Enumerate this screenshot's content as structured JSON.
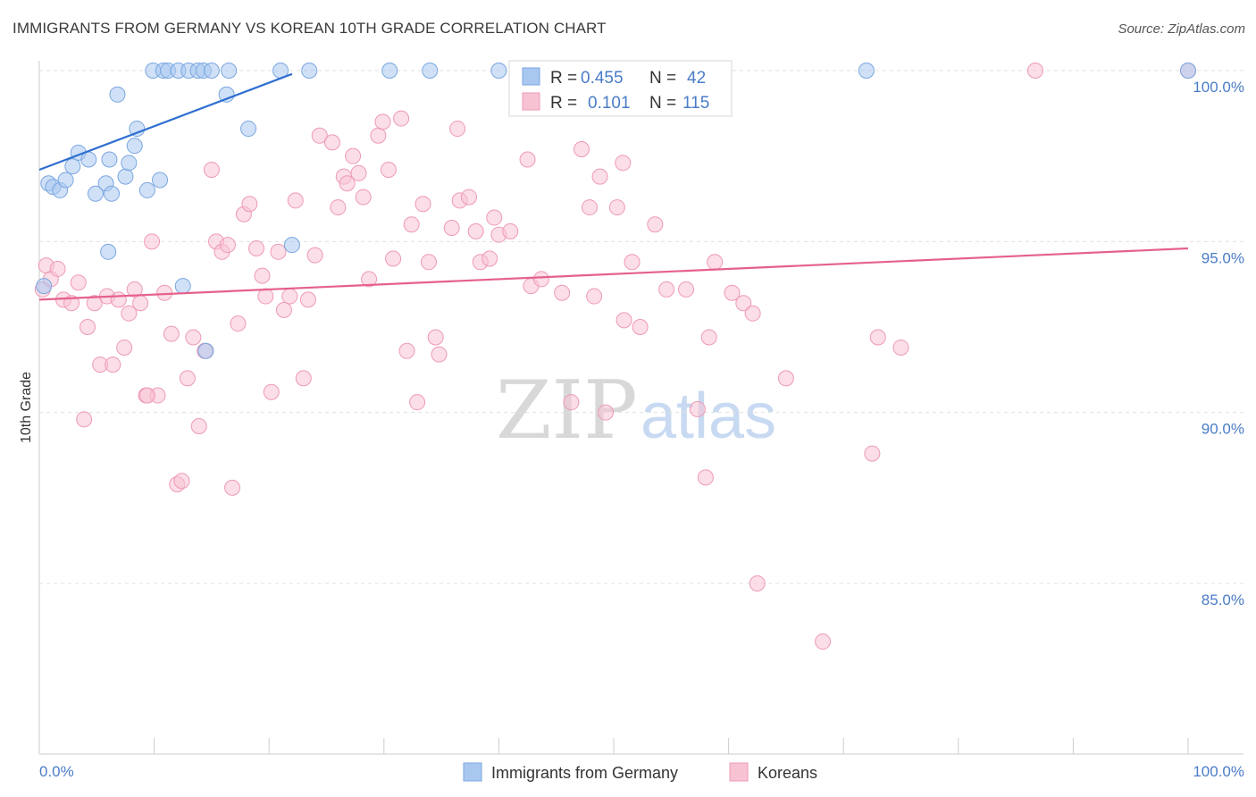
{
  "title": "IMMIGRANTS FROM GERMANY VS KOREAN 10TH GRADE CORRELATION CHART",
  "source": "Source: ZipAtlas.com",
  "watermark": {
    "zip": "ZIP",
    "atlas": "atlas"
  },
  "colors": {
    "blue_fill": "#a9c8f0",
    "blue_stroke": "#7aa6e0",
    "blue_line": "#2f6fd0",
    "pink_fill": "#f7c3d3",
    "pink_stroke": "#ee9ab5",
    "pink_line": "#e5608e",
    "tick_text": "#4a7cc7",
    "grid": "#e0e0e0"
  },
  "legend": {
    "rows": [
      {
        "r_label": "R =",
        "r_value": "0.455",
        "n_label": "N =",
        "n_value": "42"
      },
      {
        "r_label": "R =",
        "r_value": "0.101",
        "n_label": "N =",
        "n_value": "115"
      }
    ]
  },
  "bottom_legend": [
    "Immigrants from Germany",
    "Koreans"
  ],
  "chart_data": {
    "type": "scatter",
    "title": "IMMIGRANTS FROM GERMANY VS KOREAN 10TH GRADE CORRELATION CHART",
    "xlabel": "",
    "ylabel": "10th Grade",
    "xlim": [
      0,
      100
    ],
    "ylim": [
      80.5,
      100.5
    ],
    "x_tick_labels": [
      "0.0%",
      "100.0%"
    ],
    "y_ticks": [
      {
        "value": 100,
        "label": "100.0%"
      },
      {
        "value": 95,
        "label": "95.0%"
      },
      {
        "value": 90,
        "label": "90.0%"
      },
      {
        "value": 85,
        "label": "85.0%"
      }
    ],
    "grid": true,
    "legend_position": "top-center",
    "series": [
      {
        "name": "Immigrants from Germany",
        "r": 0.455,
        "n": 42,
        "trend": {
          "x": [
            0,
            22
          ],
          "y": [
            97.1,
            99.9
          ]
        },
        "points": [
          [
            0.4,
            93.7
          ],
          [
            0.8,
            96.7
          ],
          [
            1.2,
            96.6
          ],
          [
            1.8,
            96.5
          ],
          [
            2.3,
            96.8
          ],
          [
            2.9,
            97.2
          ],
          [
            3.4,
            97.6
          ],
          [
            4.3,
            97.4
          ],
          [
            4.9,
            96.4
          ],
          [
            5.8,
            96.7
          ],
          [
            6.0,
            94.7
          ],
          [
            6.1,
            97.4
          ],
          [
            6.3,
            96.4
          ],
          [
            6.8,
            99.3
          ],
          [
            7.5,
            96.9
          ],
          [
            7.8,
            97.3
          ],
          [
            8.3,
            97.8
          ],
          [
            8.5,
            98.3
          ],
          [
            9.4,
            96.5
          ],
          [
            10.5,
            96.8
          ],
          [
            9.9,
            100.0
          ],
          [
            10.8,
            100.0
          ],
          [
            11.2,
            100.0
          ],
          [
            12.1,
            100.0
          ],
          [
            12.5,
            93.7
          ],
          [
            13.0,
            100.0
          ],
          [
            13.8,
            100.0
          ],
          [
            14.3,
            100.0
          ],
          [
            14.5,
            91.8
          ],
          [
            15.0,
            100.0
          ],
          [
            16.3,
            99.3
          ],
          [
            16.5,
            100.0
          ],
          [
            18.2,
            98.3
          ],
          [
            21.0,
            100.0
          ],
          [
            22.0,
            94.9
          ],
          [
            23.5,
            100.0
          ],
          [
            30.5,
            100.0
          ],
          [
            34.0,
            100.0
          ],
          [
            40.0,
            100.0
          ],
          [
            52.0,
            100.0
          ],
          [
            72.0,
            100.0
          ],
          [
            100.0,
            100.0
          ]
        ]
      },
      {
        "name": "Koreans",
        "r": 0.101,
        "n": 115,
        "trend": {
          "x": [
            0,
            100
          ],
          "y": [
            93.3,
            94.8
          ]
        },
        "points": [
          [
            0.3,
            93.6
          ],
          [
            0.6,
            94.3
          ],
          [
            1.0,
            93.9
          ],
          [
            1.6,
            94.2
          ],
          [
            2.1,
            93.3
          ],
          [
            2.8,
            93.2
          ],
          [
            3.4,
            93.8
          ],
          [
            3.9,
            89.8
          ],
          [
            4.2,
            92.5
          ],
          [
            4.8,
            93.2
          ],
          [
            5.3,
            91.4
          ],
          [
            5.9,
            93.4
          ],
          [
            6.4,
            91.4
          ],
          [
            6.9,
            93.3
          ],
          [
            7.4,
            91.9
          ],
          [
            7.8,
            92.9
          ],
          [
            8.3,
            93.6
          ],
          [
            8.8,
            93.2
          ],
          [
            9.3,
            90.5
          ],
          [
            9.8,
            95.0
          ],
          [
            10.3,
            90.5
          ],
          [
            10.9,
            93.5
          ],
          [
            11.5,
            92.3
          ],
          [
            12.0,
            87.9
          ],
          [
            12.4,
            88.0
          ],
          [
            12.9,
            91.0
          ],
          [
            13.4,
            92.2
          ],
          [
            13.9,
            89.6
          ],
          [
            14.4,
            91.8
          ],
          [
            15.0,
            97.1
          ],
          [
            15.4,
            95.0
          ],
          [
            15.9,
            94.7
          ],
          [
            16.4,
            94.9
          ],
          [
            16.8,
            87.8
          ],
          [
            17.3,
            92.6
          ],
          [
            17.8,
            95.8
          ],
          [
            18.3,
            96.1
          ],
          [
            18.9,
            94.8
          ],
          [
            19.4,
            94.0
          ],
          [
            19.7,
            93.4
          ],
          [
            20.2,
            90.6
          ],
          [
            20.8,
            94.7
          ],
          [
            21.3,
            93.0
          ],
          [
            21.8,
            93.4
          ],
          [
            22.3,
            96.2
          ],
          [
            23.0,
            91.0
          ],
          [
            23.4,
            93.3
          ],
          [
            24.0,
            94.6
          ],
          [
            24.4,
            98.1
          ],
          [
            25.5,
            97.9
          ],
          [
            26.0,
            96.0
          ],
          [
            26.5,
            96.9
          ],
          [
            26.8,
            96.7
          ],
          [
            27.3,
            97.5
          ],
          [
            27.8,
            97.0
          ],
          [
            28.2,
            96.3
          ],
          [
            28.7,
            93.9
          ],
          [
            29.5,
            98.1
          ],
          [
            29.9,
            98.5
          ],
          [
            30.4,
            97.1
          ],
          [
            30.8,
            94.5
          ],
          [
            31.5,
            98.6
          ],
          [
            32.0,
            91.8
          ],
          [
            32.4,
            95.5
          ],
          [
            32.9,
            90.3
          ],
          [
            33.4,
            96.1
          ],
          [
            33.9,
            94.4
          ],
          [
            34.5,
            92.2
          ],
          [
            34.8,
            91.7
          ],
          [
            35.9,
            95.4
          ],
          [
            36.4,
            98.3
          ],
          [
            36.6,
            96.2
          ],
          [
            37.4,
            96.3
          ],
          [
            38.0,
            95.3
          ],
          [
            38.4,
            94.4
          ],
          [
            39.2,
            94.5
          ],
          [
            39.6,
            95.7
          ],
          [
            40.0,
            95.2
          ],
          [
            41.0,
            95.3
          ],
          [
            42.5,
            97.4
          ],
          [
            42.8,
            93.7
          ],
          [
            43.7,
            93.9
          ],
          [
            45.5,
            93.5
          ],
          [
            46.3,
            90.3
          ],
          [
            47.2,
            97.7
          ],
          [
            47.9,
            96.0
          ],
          [
            48.3,
            93.4
          ],
          [
            48.8,
            96.9
          ],
          [
            49.3,
            90.0
          ],
          [
            50.3,
            96.0
          ],
          [
            50.8,
            97.3
          ],
          [
            50.9,
            92.7
          ],
          [
            51.6,
            94.4
          ],
          [
            52.3,
            92.5
          ],
          [
            53.6,
            95.5
          ],
          [
            54.6,
            93.6
          ],
          [
            56.3,
            93.6
          ],
          [
            57.3,
            90.1
          ],
          [
            58.0,
            88.1
          ],
          [
            58.3,
            92.2
          ],
          [
            58.8,
            94.4
          ],
          [
            60.3,
            93.5
          ],
          [
            61.3,
            93.2
          ],
          [
            62.1,
            92.9
          ],
          [
            62.5,
            85.0
          ],
          [
            65.0,
            91.0
          ],
          [
            68.2,
            83.3
          ],
          [
            72.5,
            88.8
          ],
          [
            73.0,
            92.2
          ],
          [
            75.0,
            91.9
          ],
          [
            86.7,
            100.0
          ],
          [
            100.0,
            100.0
          ],
          [
            9.4,
            90.5
          ]
        ]
      }
    ]
  }
}
